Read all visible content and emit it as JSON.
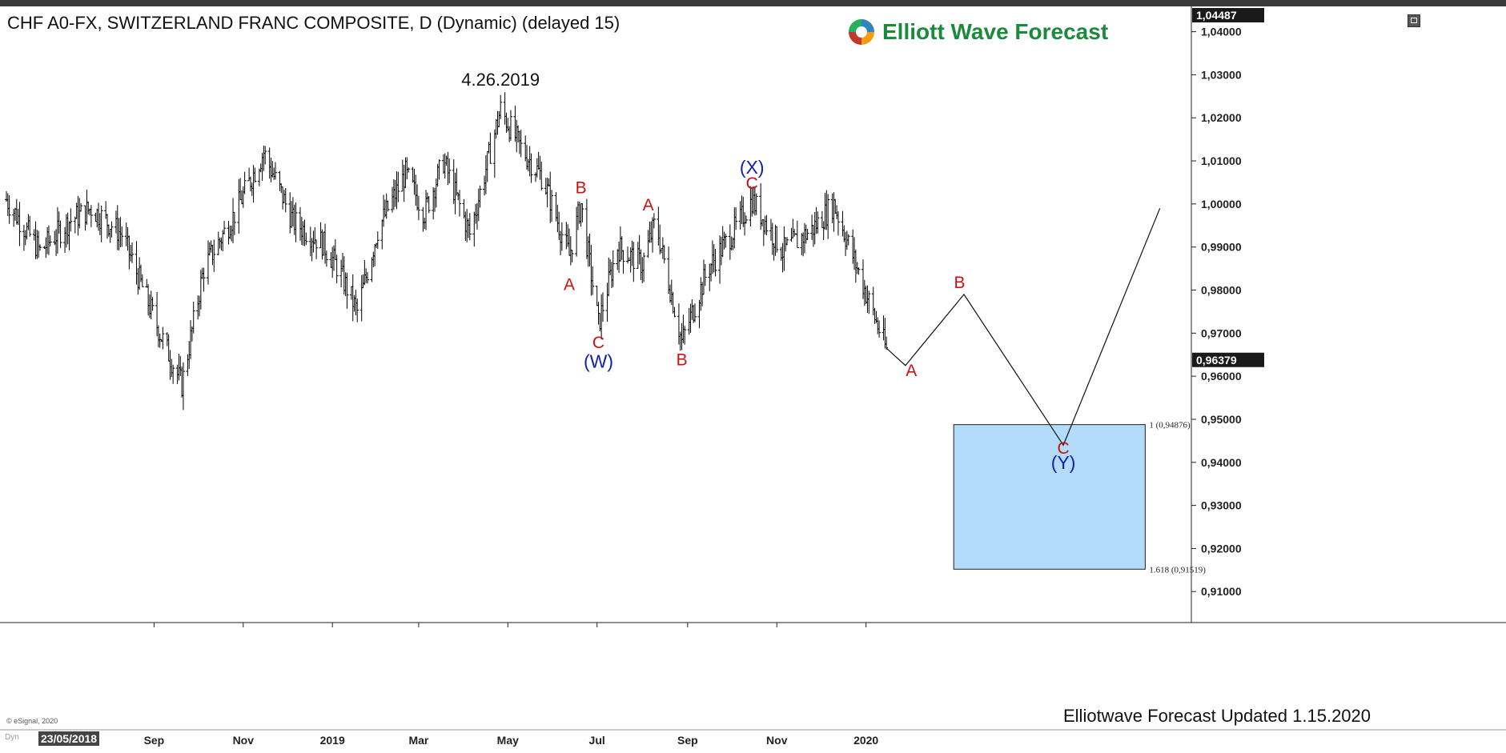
{
  "header": {
    "title": "CHF A0-FX, SWITZERLAND FRANC COMPOSITE, D (Dynamic) (delayed 15)",
    "brand": "Elliott Wave Forecast"
  },
  "footer": {
    "copyright": "© eSignal, 2020",
    "dyn": "Dyn",
    "date_badge": "23/05/2018",
    "updated": "Elliotwave Forecast Updated 1.15.2020"
  },
  "colors": {
    "bars": "#000000",
    "wave_red": "#cc1111",
    "wave_blue": "#1122aa",
    "target_box": "#b3dcfb",
    "brand_green": "#1b8a3c",
    "axis_badge": "#1a1a1a"
  },
  "chart_data": {
    "type": "ohlc",
    "title": "CHF A0-FX, SWITZERLAND FRANC COMPOSITE, D (Dynamic) (delayed 15)",
    "x_tick_labels": [
      "Sep",
      "Nov",
      "2019",
      "Mar",
      "May",
      "Jul",
      "Sep",
      "Nov",
      "2020"
    ],
    "x_range": [
      "2018-05-23",
      "2020-08-10"
    ],
    "y_tick_labels": [
      "1,04000",
      "1,03000",
      "1,02000",
      "1,01000",
      "1,00000",
      "0,99000",
      "0,98000",
      "0,97000",
      "0,96000",
      "0,95000",
      "0,94000",
      "0,93000",
      "0,92000",
      "0,91000"
    ],
    "ylim": [
      0.9067,
      1.0455
    ],
    "top_price": "1,04487",
    "last_price": "0,96379",
    "grid": false,
    "price_path": [
      {
        "date": "2018-05-23",
        "price": 1.001
      },
      {
        "date": "2018-06-15",
        "price": 0.989
      },
      {
        "date": "2018-07-05",
        "price": 0.996
      },
      {
        "date": "2018-07-20",
        "price": 0.999
      },
      {
        "date": "2018-08-10",
        "price": 0.993
      },
      {
        "date": "2018-09-05",
        "price": 0.97
      },
      {
        "date": "2018-09-20",
        "price": 0.958
      },
      {
        "date": "2018-10-05",
        "price": 0.985
      },
      {
        "date": "2018-10-25",
        "price": 0.997
      },
      {
        "date": "2018-11-15",
        "price": 1.012
      },
      {
        "date": "2018-12-05",
        "price": 0.996
      },
      {
        "date": "2018-12-25",
        "price": 0.991
      },
      {
        "date": "2019-01-05",
        "price": 0.985
      },
      {
        "date": "2019-01-18",
        "price": 0.975
      },
      {
        "date": "2019-02-01",
        "price": 0.994
      },
      {
        "date": "2019-02-20",
        "price": 1.007
      },
      {
        "date": "2019-03-05",
        "price": 0.998
      },
      {
        "date": "2019-03-18",
        "price": 1.01
      },
      {
        "date": "2019-04-05",
        "price": 0.993
      },
      {
        "date": "2019-04-26",
        "price": 1.022
      },
      {
        "date": "2019-05-10",
        "price": 1.013
      },
      {
        "date": "2019-05-25",
        "price": 1.006
      },
      {
        "date": "2019-06-05",
        "price": 0.995
      },
      {
        "date": "2019-06-12",
        "price": 0.988
      },
      {
        "date": "2019-06-20",
        "price": 1.0
      },
      {
        "date": "2019-07-02",
        "price": 0.972
      },
      {
        "date": "2019-07-15",
        "price": 0.99
      },
      {
        "date": "2019-08-01",
        "price": 0.986
      },
      {
        "date": "2019-08-10",
        "price": 0.996
      },
      {
        "date": "2019-08-28",
        "price": 0.968
      },
      {
        "date": "2019-09-15",
        "price": 0.985
      },
      {
        "date": "2019-10-05",
        "price": 0.995
      },
      {
        "date": "2019-10-15",
        "price": 1.001
      },
      {
        "date": "2019-11-05",
        "price": 0.989
      },
      {
        "date": "2019-11-25",
        "price": 0.994
      },
      {
        "date": "2019-12-10",
        "price": 1.0
      },
      {
        "date": "2019-12-25",
        "price": 0.986
      },
      {
        "date": "2020-01-15",
        "price": 0.966
      }
    ],
    "annotations": [
      {
        "text": "4.26.2019",
        "date": "2019-04-26",
        "price": 1.0275,
        "color": "#111111"
      },
      {
        "text": "A",
        "date": "2019-06-12",
        "price": 0.98,
        "color": "#cc1111"
      },
      {
        "text": "B",
        "date": "2019-06-20",
        "price": 1.0025,
        "color": "#cc1111"
      },
      {
        "text": "C",
        "date": "2019-07-02",
        "price": 0.9665,
        "color": "#cc1111"
      },
      {
        "text": "(W)",
        "date": "2019-07-02",
        "price": 0.962,
        "color": "#1122aa"
      },
      {
        "text": "A",
        "date": "2019-08-05",
        "price": 0.9985,
        "color": "#cc1111"
      },
      {
        "text": "B",
        "date": "2019-08-28",
        "price": 0.9625,
        "color": "#cc1111"
      },
      {
        "text": "C",
        "date": "2019-10-15",
        "price": 1.0035,
        "color": "#cc1111"
      },
      {
        "text": "(X)",
        "date": "2019-10-15",
        "price": 1.007,
        "color": "#1122aa"
      },
      {
        "text": "A",
        "date": "2020-02-01",
        "price": 0.96,
        "color": "#cc1111"
      },
      {
        "text": "B",
        "date": "2020-03-05",
        "price": 0.9805,
        "color": "#cc1111"
      },
      {
        "text": "C",
        "date": "2020-05-15",
        "price": 0.942,
        "color": "#cc1111"
      },
      {
        "text": "(Y)",
        "date": "2020-05-15",
        "price": 0.9385,
        "color": "#1122aa"
      }
    ],
    "projection_path": [
      {
        "date": "2020-01-15",
        "price": 0.9665
      },
      {
        "date": "2020-01-28",
        "price": 0.9625
      },
      {
        "date": "2020-03-08",
        "price": 0.979
      },
      {
        "date": "2020-05-15",
        "price": 0.944
      },
      {
        "date": "2020-07-20",
        "price": 0.999
      }
    ],
    "target_zone": {
      "x_range": [
        "2020-03-01",
        "2020-07-10"
      ],
      "price_range": [
        0.91519,
        0.94876
      ],
      "upper_label": "1 (0,94876)",
      "lower_label": "1.618 (0,91519)"
    }
  }
}
